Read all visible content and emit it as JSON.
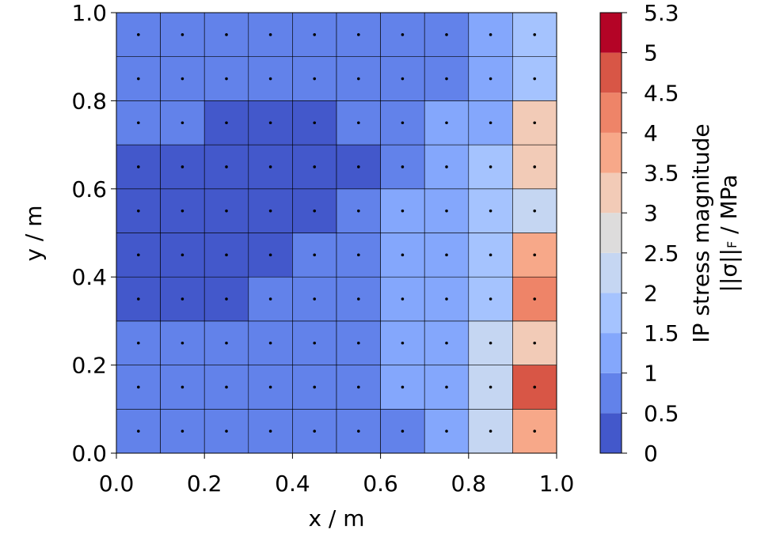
{
  "chart_data": {
    "type": "heatmap",
    "xlabel": "x / m",
    "ylabel": "y / m",
    "x": [
      0.05,
      0.15,
      0.25,
      0.35,
      0.45,
      0.55,
      0.65,
      0.75,
      0.85,
      0.95
    ],
    "y": [
      0.05,
      0.15,
      0.25,
      0.35,
      0.45,
      0.55,
      0.65,
      0.75,
      0.85,
      0.95
    ],
    "values": [
      [
        0.7,
        0.7,
        0.7,
        0.7,
        0.7,
        0.8,
        0.9,
        1.0,
        2.2,
        3.6
      ],
      [
        0.7,
        0.7,
        0.7,
        0.7,
        0.7,
        0.8,
        1.0,
        1.3,
        2.4,
        4.8
      ],
      [
        0.7,
        0.7,
        0.7,
        0.7,
        0.7,
        0.8,
        1.0,
        1.3,
        2.0,
        3.2
      ],
      [
        0.4,
        0.4,
        0.4,
        0.7,
        0.7,
        0.8,
        1.0,
        1.3,
        1.8,
        4.2
      ],
      [
        0.4,
        0.4,
        0.4,
        0.4,
        0.7,
        0.8,
        1.0,
        1.3,
        1.8,
        3.8
      ],
      [
        0.4,
        0.4,
        0.4,
        0.4,
        0.4,
        0.7,
        1.0,
        1.2,
        1.6,
        2.4
      ],
      [
        0.4,
        0.4,
        0.4,
        0.4,
        0.4,
        0.4,
        0.8,
        1.1,
        1.5,
        3.2
      ],
      [
        0.7,
        0.7,
        0.4,
        0.4,
        0.4,
        0.6,
        0.8,
        1.0,
        1.3,
        3.4
      ],
      [
        0.7,
        0.7,
        0.7,
        0.7,
        0.7,
        0.7,
        0.8,
        0.9,
        1.1,
        1.8
      ],
      [
        0.7,
        0.7,
        0.7,
        0.7,
        0.7,
        0.7,
        0.7,
        0.8,
        1.0,
        1.6
      ]
    ],
    "xlim": [
      0,
      1
    ],
    "ylim": [
      0,
      1
    ],
    "xticks": [
      {
        "value": 0,
        "label": "0.0"
      },
      0.2,
      0.4,
      0.6,
      0.8,
      {
        "value": 1,
        "label": "1.0"
      }
    ],
    "yticks": [
      {
        "value": 0,
        "label": "0.0"
      },
      0.2,
      0.4,
      0.6,
      0.8,
      {
        "value": 1,
        "label": "1.0"
      }
    ],
    "colorbar_ticks": [
      0,
      0.5,
      1,
      1.5,
      2,
      2.5,
      3,
      3.5,
      4,
      4.5,
      5,
      5.3
    ],
    "colorbar_colors": [
      "#4358cb",
      "#6282ea",
      "#84a7fc",
      "#a5c3fe",
      "#c5d6f2",
      "#dddcdc",
      "#f2cbb7",
      "#f7a889",
      "#ee8468",
      "#d85646",
      "#b40426"
    ],
    "colorbar_label": "IP stress magnitude",
    "colorbar_unit": {
      "norm": "||σ||",
      "sub": "F",
      "unit": " / MPa"
    }
  }
}
